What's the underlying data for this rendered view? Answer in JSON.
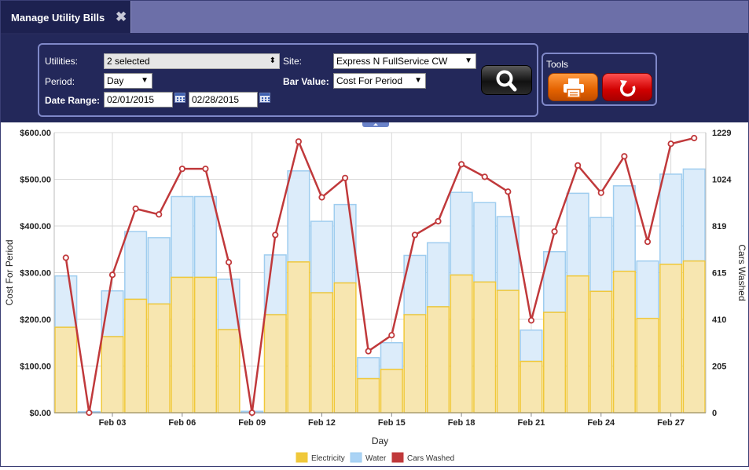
{
  "window": {
    "tab_title": "Manage Utility Bills"
  },
  "filters": {
    "utilities_label": "Utilities:",
    "utilities_value": "2 selected",
    "period_label": "Period:",
    "period_value": "Day",
    "date_range_label": "Date Range:",
    "date_from": "02/01/2015",
    "date_to": "02/28/2015",
    "site_label": "Site:",
    "site_value": "Express N FullService CW",
    "bar_value_label": "Bar Value:",
    "bar_value_value": "Cost For Period"
  },
  "tools": {
    "label": "Tools"
  },
  "icons": {
    "search": "magnifier-icon",
    "print": "printer-icon",
    "reset": "undo-icon",
    "close": "close-icon",
    "calendar": "calendar-icon"
  },
  "colors": {
    "electricity": "#f7e6b0",
    "electricity_stroke": "#f0c83a",
    "water": "#dcecfa",
    "water_stroke": "#9fcdef",
    "cars": "#c0393b"
  },
  "chart_data": {
    "type": "bar",
    "stacked": true,
    "xlabel": "Day",
    "ylabel": "Cost For Period",
    "y2label": "Cars Washed",
    "ylim": [
      0,
      600
    ],
    "y2lim": [
      0,
      1229
    ],
    "yticks": [
      "$0.00",
      "$100.00",
      "$200.00",
      "$300.00",
      "$400.00",
      "$500.00",
      "$600.00"
    ],
    "y2ticks": [
      "0",
      "205",
      "410",
      "615",
      "819",
      "1024",
      "1229"
    ],
    "x_tick_labels": [
      {
        "day": 3,
        "label": "Feb 03"
      },
      {
        "day": 6,
        "label": "Feb 06"
      },
      {
        "day": 9,
        "label": "Feb 09"
      },
      {
        "day": 12,
        "label": "Feb 12"
      },
      {
        "day": 15,
        "label": "Feb 15"
      },
      {
        "day": 18,
        "label": "Feb 18"
      },
      {
        "day": 21,
        "label": "Feb 21"
      },
      {
        "day": 24,
        "label": "Feb 24"
      },
      {
        "day": 27,
        "label": "Feb 27"
      }
    ],
    "days": [
      1,
      2,
      3,
      4,
      5,
      6,
      7,
      8,
      9,
      10,
      11,
      12,
      13,
      14,
      15,
      16,
      17,
      18,
      19,
      20,
      21,
      22,
      23,
      24,
      25,
      26,
      27,
      28
    ],
    "series": [
      {
        "name": "Electricity",
        "axis": "left",
        "values": [
          183,
          0,
          163,
          243,
          233,
          290,
          290,
          178,
          0,
          210,
          323,
          257,
          278,
          73,
          93,
          210,
          227,
          295,
          280,
          262,
          110,
          215,
          293,
          260,
          303,
          202,
          318,
          325
        ]
      },
      {
        "name": "Water",
        "axis": "left",
        "values": [
          110,
          2,
          98,
          145,
          142,
          173,
          173,
          108,
          3,
          128,
          195,
          153,
          168,
          45,
          57,
          127,
          137,
          177,
          170,
          158,
          67,
          130,
          177,
          158,
          183,
          123,
          193,
          197
        ]
      },
      {
        "name": "Cars Washed",
        "axis": "right",
        "type": "line",
        "values": [
          680,
          0,
          605,
          895,
          870,
          1070,
          1070,
          660,
          0,
          780,
          1190,
          945,
          1030,
          270,
          340,
          780,
          840,
          1090,
          1035,
          970,
          405,
          795,
          1085,
          965,
          1125,
          750,
          1180,
          1205
        ]
      }
    ],
    "legend": {
      "placement": "bottom-center",
      "items": [
        "Electricity",
        "Water",
        "Cars Washed"
      ]
    },
    "grid": true
  }
}
